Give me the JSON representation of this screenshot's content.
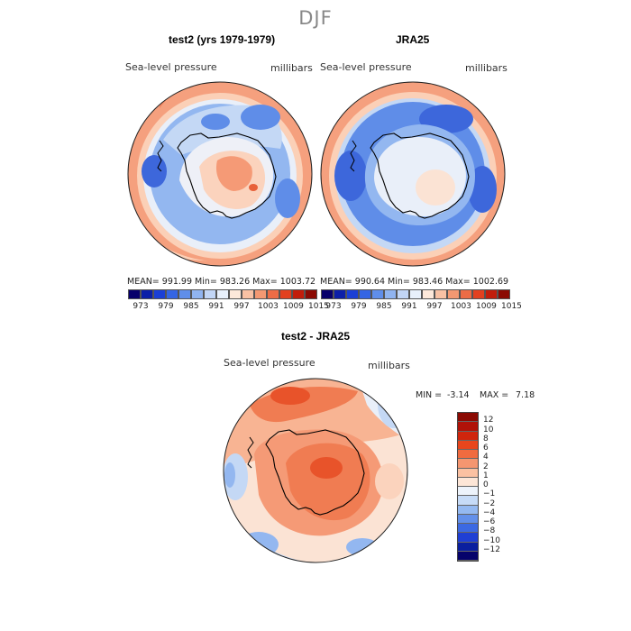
{
  "main_title": "DJF",
  "panels": [
    {
      "title": "test2 (yrs 1979-1979)",
      "variable": "Sea-level pressure",
      "units": "millibars",
      "stats": "MEAN= 991.99   Min= 983.26   Max= 1003.72"
    },
    {
      "title": "JRA25",
      "variable": "Sea-level pressure",
      "units": "millibars",
      "stats": "MEAN= 990.64   Min= 983.46   Max= 1002.69"
    }
  ],
  "colorbar_abs": {
    "labels": [
      "973",
      "979",
      "985",
      "991",
      "997",
      "1003",
      "1009",
      "1015"
    ],
    "colors": [
      "#08006b",
      "#0c1fa8",
      "#1a3fd6",
      "#3465e4",
      "#5f8eea",
      "#90b4f0",
      "#c2d6f6",
      "#e8f0fb",
      "#fde8da",
      "#f8c1a4",
      "#f39872",
      "#ec6c46",
      "#e2401f",
      "#c21d0b",
      "#8b0a03"
    ]
  },
  "diff_panel": {
    "title": "test2 - JRA25",
    "variable": "Sea-level pressure",
    "units": "millibars",
    "min_label": "MIN =",
    "min_value": "-3.14",
    "max_label": "MAX =",
    "max_value": "7.18"
  },
  "colorbar_diff": {
    "labels": [
      "12",
      "10",
      "8",
      "6",
      "4",
      "2",
      "1",
      "0",
      "−1",
      "−2",
      "−4",
      "−6",
      "−8",
      "−10",
      "−12"
    ],
    "colors": [
      "#8b0a03",
      "#b01208",
      "#d0250d",
      "#e8461c",
      "#f06b3f",
      "#f59670",
      "#fbc1a2",
      "#fde6d7",
      "#edf3fb",
      "#c6dbf7",
      "#94b9f1",
      "#6390ea",
      "#3c69e3",
      "#1f3fd4",
      "#0a1f9f",
      "#06036b"
    ]
  },
  "palette": {
    "red_high": "#e8613a",
    "red_mid": "#f59a76",
    "red_low": "#fbd3bd",
    "blue_low": "#c7dbf6",
    "blue_mid": "#8fb3ef",
    "blue_high": "#5f8eea",
    "blue_deep": "#3d67db",
    "neutral": "#f3f1f4"
  }
}
